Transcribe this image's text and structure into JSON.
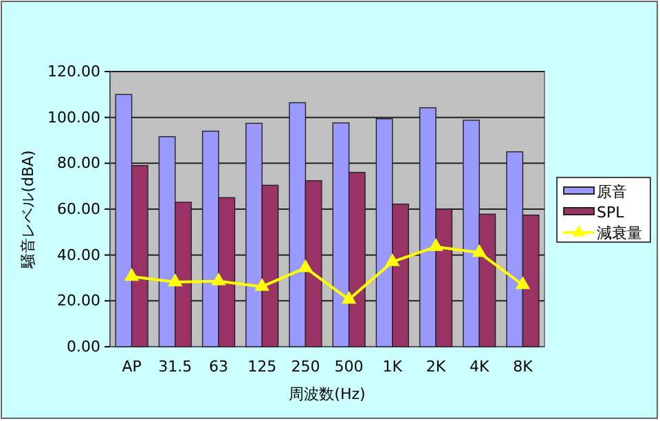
{
  "chart_data": {
    "type": "bar",
    "xlabel": "周波数(Hz)",
    "ylabel": "騒音レベル(dBA)",
    "categories": [
      "AP",
      "31.5",
      "63",
      "125",
      "250",
      "500",
      "1K",
      "2K",
      "4K",
      "8K"
    ],
    "series": [
      {
        "name": "原音",
        "color": "#9999ff",
        "values": [
          110,
          91.6,
          94,
          97.4,
          106.4,
          97.6,
          99.4,
          104.2,
          98.8,
          85
        ]
      },
      {
        "name": "SPL",
        "color": "#993366",
        "values": [
          79,
          63,
          65,
          70.4,
          72.4,
          76,
          62.2,
          60,
          57.8,
          57.4
        ]
      },
      {
        "name": "減衰量",
        "type": "line",
        "color": "#ffff00",
        "values": [
          30.6,
          28.2,
          28.6,
          26.2,
          34.4,
          20.6,
          37,
          43.6,
          41,
          27
        ]
      }
    ],
    "ylim": [
      0,
      120
    ],
    "yticks": [
      {
        "value": 0,
        "label": "0.00"
      },
      {
        "value": 20,
        "label": "20.00"
      },
      {
        "value": 40,
        "label": "40.00"
      },
      {
        "value": 60,
        "label": "60.00"
      },
      {
        "value": 80,
        "label": "80.00"
      },
      {
        "value": 100,
        "label": "100.00"
      },
      {
        "value": 120,
        "label": "120.00"
      }
    ],
    "grid": "y",
    "legend": "right",
    "marker": "triangle"
  }
}
